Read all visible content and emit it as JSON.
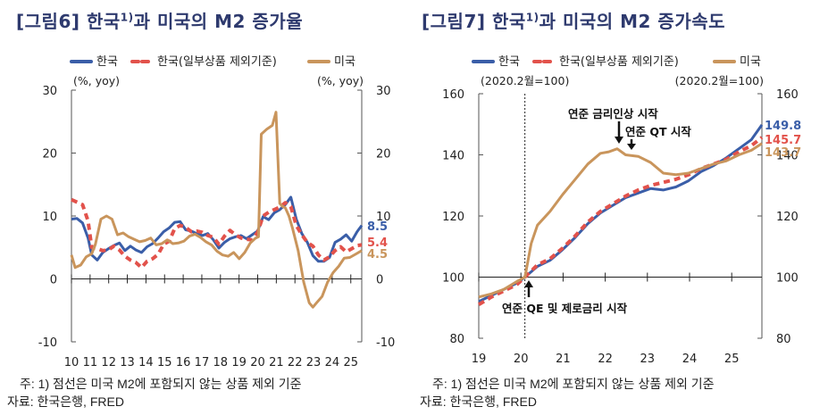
{
  "chart_data": [
    {
      "type": "line",
      "id": "fig6",
      "title_prefix": "[그림6] 한국",
      "title_sup": "1)",
      "title_suffix": "과 미국의 M2 증가율",
      "legend": [
        {
          "name": "한국",
          "color": "#3a5ea8",
          "style": "solid"
        },
        {
          "name": "한국(일부상품 제외기준)",
          "color": "#e2524b",
          "style": "dashed"
        },
        {
          "name": "미국",
          "color": "#c9955c",
          "style": "solid"
        }
      ],
      "legend_placement": "top-center",
      "ylabel_left": "(%, yoy)",
      "ylabel_right": "(%, yoy)",
      "ylim": [
        -10,
        30
      ],
      "yticks": [
        30,
        20,
        10,
        0,
        -10
      ],
      "xticks": [
        "10",
        "11",
        "12",
        "13",
        "14",
        "15",
        "16",
        "17",
        "18",
        "19",
        "20",
        "21",
        "22",
        "23",
        "24",
        "25"
      ],
      "xlim": [
        2010.0,
        2025.75
      ],
      "end_labels": [
        {
          "series": "한국",
          "value": "8.5",
          "color": "#3a5ea8"
        },
        {
          "series": "한국(일부상품 제외기준)",
          "value": "5.4",
          "color": "#e2524b"
        },
        {
          "series": "미국",
          "value": "4.5",
          "color": "#c9955c"
        }
      ],
      "series": [
        {
          "name": "한국",
          "color": "#3a5ea8",
          "dash": false,
          "x": [
            2010.0,
            2010.3,
            2010.6,
            2010.9,
            2011.1,
            2011.4,
            2011.7,
            2012.0,
            2012.3,
            2012.6,
            2012.9,
            2013.2,
            2013.5,
            2013.8,
            2014.1,
            2014.4,
            2014.7,
            2015.0,
            2015.3,
            2015.6,
            2015.9,
            2016.2,
            2016.5,
            2016.8,
            2017.1,
            2017.4,
            2017.7,
            2018.0,
            2018.3,
            2018.6,
            2018.9,
            2019.2,
            2019.5,
            2019.8,
            2020.1,
            2020.4,
            2020.7,
            2021.0,
            2021.3,
            2021.6,
            2021.9,
            2022.2,
            2022.5,
            2022.8,
            2023.1,
            2023.4,
            2023.7,
            2024.0,
            2024.3,
            2024.6,
            2024.9,
            2025.2,
            2025.5,
            2025.75
          ],
          "values": [
            9.5,
            9.6,
            8.9,
            6.5,
            3.8,
            3.0,
            4.2,
            4.8,
            5.3,
            5.7,
            4.5,
            5.2,
            4.6,
            4.2,
            5.1,
            5.6,
            6.5,
            7.5,
            8.1,
            9.0,
            9.1,
            7.8,
            7.6,
            7.2,
            6.9,
            7.2,
            6.2,
            4.9,
            5.8,
            6.4,
            6.7,
            6.9,
            6.4,
            7.0,
            7.6,
            9.9,
            9.4,
            10.5,
            11.0,
            11.8,
            13.0,
            9.5,
            7.2,
            5.8,
            3.7,
            2.8,
            2.8,
            3.4,
            5.8,
            6.3,
            7.0,
            6.0,
            7.5,
            8.5
          ]
        },
        {
          "name": "한국(일부상품 제외기준)",
          "color": "#e2524b",
          "dash": true,
          "x": [
            2010.0,
            2010.3,
            2010.6,
            2010.9,
            2011.1,
            2011.4,
            2011.7,
            2012.0,
            2012.3,
            2012.6,
            2012.9,
            2013.2,
            2013.5,
            2013.8,
            2014.1,
            2014.4,
            2014.7,
            2015.0,
            2015.3,
            2015.6,
            2015.9,
            2016.2,
            2016.5,
            2016.8,
            2017.1,
            2017.4,
            2017.7,
            2018.0,
            2018.3,
            2018.6,
            2018.9,
            2019.2,
            2019.5,
            2019.8,
            2020.1,
            2020.4,
            2020.7,
            2021.0,
            2021.3,
            2021.6,
            2021.9,
            2022.2,
            2022.5,
            2022.8,
            2023.1,
            2023.4,
            2023.7,
            2024.0,
            2024.3,
            2024.6,
            2024.9,
            2025.2,
            2025.5,
            2025.75
          ],
          "values": [
            12.6,
            12.2,
            11.8,
            9.2,
            5.0,
            4.8,
            4.5,
            4.6,
            5.2,
            4.6,
            3.6,
            3.0,
            2.6,
            1.8,
            2.8,
            3.2,
            3.9,
            5.5,
            6.0,
            8.0,
            8.5,
            8.2,
            7.5,
            7.6,
            7.4,
            6.9,
            6.6,
            5.5,
            6.8,
            7.7,
            7.0,
            6.5,
            6.3,
            6.2,
            7.4,
            10.0,
            10.6,
            11.0,
            11.4,
            12.1,
            11.5,
            8.5,
            7.0,
            5.8,
            5.2,
            3.8,
            3.0,
            3.5,
            4.5,
            5.1,
            4.3,
            4.8,
            5.3,
            5.4
          ]
        },
        {
          "name": "미국",
          "color": "#c9955c",
          "dash": false,
          "x": [
            2010.0,
            2010.2,
            2010.5,
            2010.8,
            2011.1,
            2011.3,
            2011.6,
            2011.9,
            2012.2,
            2012.5,
            2012.8,
            2013.1,
            2013.4,
            2013.7,
            2014.0,
            2014.3,
            2014.6,
            2014.9,
            2015.2,
            2015.5,
            2015.8,
            2016.1,
            2016.4,
            2016.7,
            2017.0,
            2017.3,
            2017.6,
            2017.9,
            2018.2,
            2018.5,
            2018.8,
            2019.1,
            2019.4,
            2019.7,
            2020.0,
            2020.15,
            2020.3,
            2020.6,
            2020.9,
            2021.1,
            2021.3,
            2021.45,
            2021.6,
            2021.8,
            2022.0,
            2022.3,
            2022.6,
            2022.9,
            2023.1,
            2023.3,
            2023.6,
            2023.9,
            2024.2,
            2024.5,
            2024.8,
            2025.1,
            2025.4,
            2025.75
          ],
          "values": [
            3.8,
            1.8,
            2.2,
            3.5,
            4.0,
            5.5,
            9.5,
            10.0,
            9.5,
            7.0,
            7.3,
            6.7,
            6.3,
            5.9,
            6.1,
            6.5,
            5.4,
            5.6,
            6.2,
            5.6,
            5.7,
            6.0,
            6.8,
            7.1,
            6.6,
            5.9,
            5.4,
            4.4,
            3.8,
            3.6,
            4.2,
            3.2,
            4.2,
            5.7,
            6.5,
            6.7,
            23.0,
            23.8,
            24.4,
            26.5,
            12.0,
            11.5,
            11.3,
            10.0,
            8.0,
            4.5,
            -0.5,
            -3.8,
            -4.5,
            -3.8,
            -2.8,
            -0.5,
            1.0,
            2.0,
            3.3,
            3.4,
            3.9,
            4.5
          ]
        }
      ]
    },
    {
      "type": "line",
      "id": "fig7",
      "title_prefix": "[그림7] 한국",
      "title_sup": "1)",
      "title_suffix": "과 미국의 M2 증가속도",
      "legend": [
        {
          "name": "한국",
          "color": "#3a5ea8",
          "style": "solid"
        },
        {
          "name": "한국(일부상품 제외기준)",
          "color": "#e2524b",
          "style": "dashed"
        },
        {
          "name": "미국",
          "color": "#c9955c",
          "style": "solid"
        }
      ],
      "legend_placement": "top-center",
      "ylabel_left": "(2020.2월=100)",
      "ylabel_right": "(2020.2월=100)",
      "ylim": [
        80,
        160
      ],
      "yticks": [
        160,
        140,
        120,
        100,
        80
      ],
      "xticks": [
        "19",
        "20",
        "21",
        "22",
        "23",
        "24",
        "25"
      ],
      "xlim": [
        2019.0,
        2025.75
      ],
      "reference_line_x": 2020.1,
      "annotations": [
        {
          "text": "연준 금리인상 시작",
          "x": 2022.2,
          "arrow_y": 142
        },
        {
          "text": "연준 QT 시작",
          "x": 2022.45,
          "arrow_y": 141
        },
        {
          "text": "연준 QE 및 제로금리 시작",
          "x": 2020.1,
          "arrow_y": 99
        }
      ],
      "end_labels": [
        {
          "series": "한국",
          "value": "149.8",
          "color": "#3a5ea8"
        },
        {
          "series": "한국(일부상품 제외기준)",
          "value": "145.7",
          "color": "#e2524b"
        },
        {
          "series": "미국",
          "value": "143.7",
          "color": "#c9955c"
        }
      ],
      "series": [
        {
          "name": "한국",
          "color": "#3a5ea8",
          "dash": false,
          "x": [
            2019.0,
            2019.3,
            2019.6,
            2019.9,
            2020.1,
            2020.4,
            2020.7,
            2021.0,
            2021.3,
            2021.6,
            2021.9,
            2022.2,
            2022.5,
            2022.8,
            2023.1,
            2023.4,
            2023.7,
            2024.0,
            2024.3,
            2024.6,
            2024.9,
            2025.2,
            2025.5,
            2025.75
          ],
          "values": [
            92.0,
            94.0,
            96.0,
            98.0,
            100.0,
            103.5,
            105.5,
            109.0,
            113.0,
            117.5,
            121.0,
            123.5,
            126.0,
            127.5,
            129.0,
            128.5,
            129.5,
            131.5,
            134.5,
            136.5,
            139.0,
            142.0,
            145.0,
            149.8
          ]
        },
        {
          "name": "한국(일부상품 제외기준)",
          "color": "#e2524b",
          "dash": true,
          "x": [
            2019.0,
            2019.3,
            2019.6,
            2019.9,
            2020.1,
            2020.4,
            2020.7,
            2021.0,
            2021.3,
            2021.6,
            2021.9,
            2022.2,
            2022.5,
            2022.8,
            2023.1,
            2023.4,
            2023.7,
            2024.0,
            2024.3,
            2024.6,
            2024.9,
            2025.2,
            2025.5,
            2025.75
          ],
          "values": [
            91.0,
            93.5,
            95.5,
            97.5,
            100.0,
            104.0,
            106.0,
            109.5,
            113.5,
            118.0,
            121.5,
            124.0,
            126.5,
            128.5,
            130.0,
            131.0,
            132.0,
            133.5,
            135.5,
            137.0,
            138.5,
            141.0,
            143.0,
            145.7
          ]
        },
        {
          "name": "미국",
          "color": "#c9955c",
          "dash": false,
          "x": [
            2019.0,
            2019.3,
            2019.6,
            2019.9,
            2020.1,
            2020.25,
            2020.4,
            2020.7,
            2021.0,
            2021.3,
            2021.6,
            2021.9,
            2022.1,
            2022.3,
            2022.5,
            2022.8,
            2023.1,
            2023.4,
            2023.7,
            2024.0,
            2024.3,
            2024.6,
            2024.9,
            2025.2,
            2025.5,
            2025.75
          ],
          "values": [
            93.5,
            94.5,
            96.0,
            98.5,
            100.0,
            111.0,
            117.0,
            121.5,
            127.0,
            132.0,
            137.0,
            140.5,
            141.0,
            142.0,
            140.0,
            139.5,
            137.5,
            134.0,
            133.5,
            134.0,
            135.5,
            137.0,
            138.0,
            140.0,
            141.5,
            143.7
          ]
        }
      ]
    }
  ],
  "notes": {
    "left_note": "주: 1) 점선은 미국 M2에 포함되지 않는 상품 제외 기준",
    "left_source": "자료: 한국은행, FRED",
    "right_note": "주: 1) 점선은 미국 M2에 포함되지 않는 상품 제외 기준",
    "right_source": "자료: 한국은행, FRED"
  }
}
